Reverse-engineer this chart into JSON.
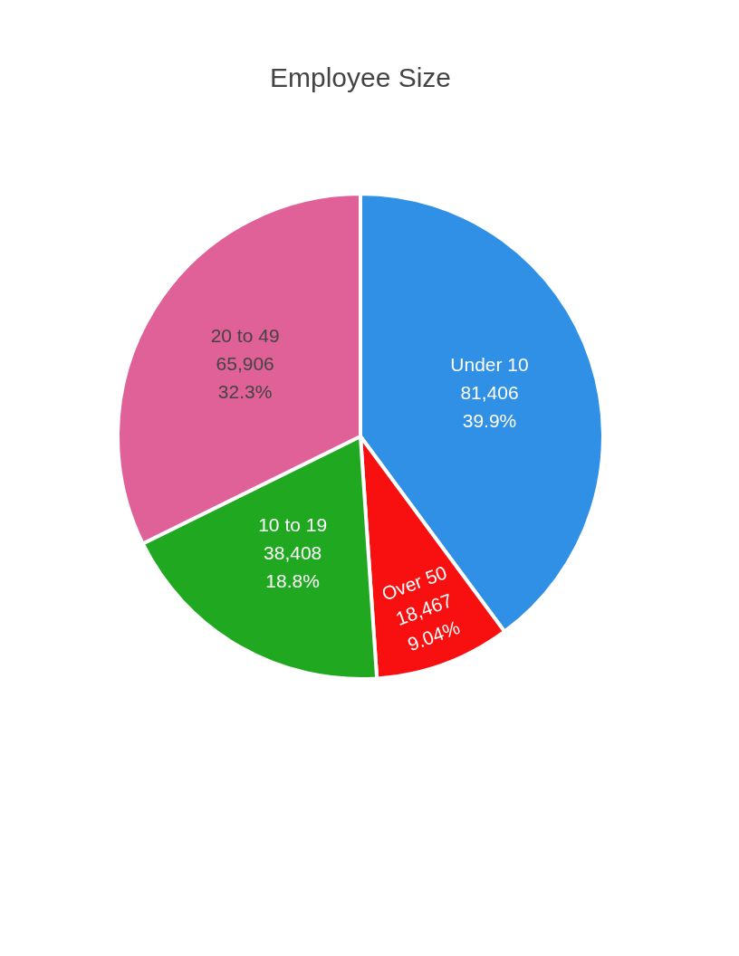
{
  "chart_data": {
    "type": "pie",
    "title": "Employee Size",
    "categories": [
      "Under 10",
      "Over 50",
      "10 to 19",
      "20 to 49"
    ],
    "values": [
      39.9,
      9.04,
      18.8,
      32.3
    ],
    "colors": [
      "#3090e6",
      "#f81010",
      "#20a820",
      "#e06098"
    ],
    "value_labels": [
      "81,406\n39.9%",
      "18,467\n9.04%",
      "38,408\n18.8%",
      "65,906\n32.3%"
    ],
    "legend": false
  }
}
